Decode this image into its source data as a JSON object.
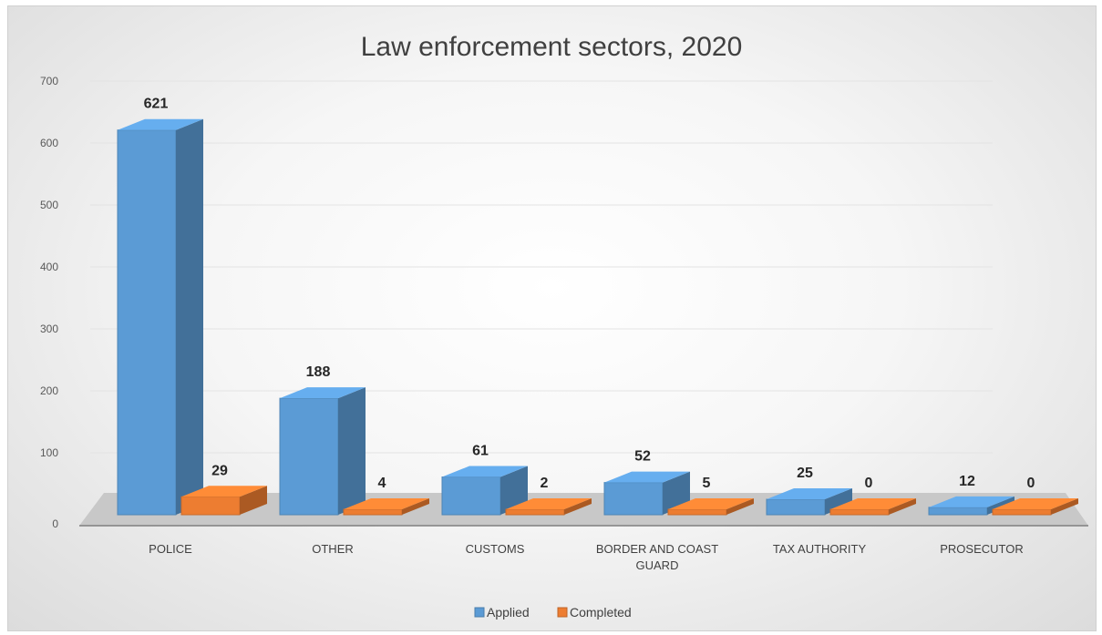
{
  "chart_data": {
    "type": "bar",
    "title": "Law enforcement sectors, 2020",
    "categories": [
      "POLICE",
      "OTHER",
      "CUSTOMS",
      "BORDER AND COAST GUARD",
      "TAX AUTHORITY",
      "PROSECUTOR"
    ],
    "series": [
      {
        "name": "Applied",
        "values": [
          621,
          188,
          61,
          52,
          25,
          12
        ]
      },
      {
        "name": "Completed",
        "values": [
          29,
          4,
          2,
          5,
          0,
          0
        ]
      }
    ],
    "yticks": [
      0,
      100,
      200,
      300,
      400,
      500,
      600,
      700
    ],
    "ylim": [
      0,
      700
    ],
    "xlabel": "",
    "ylabel": "",
    "grid": true,
    "legend": "bottom",
    "data_labels": true,
    "style": "3d-clustered-column",
    "colors": {
      "Applied": "#5b9bd5",
      "Completed": "#ed7d31"
    }
  }
}
